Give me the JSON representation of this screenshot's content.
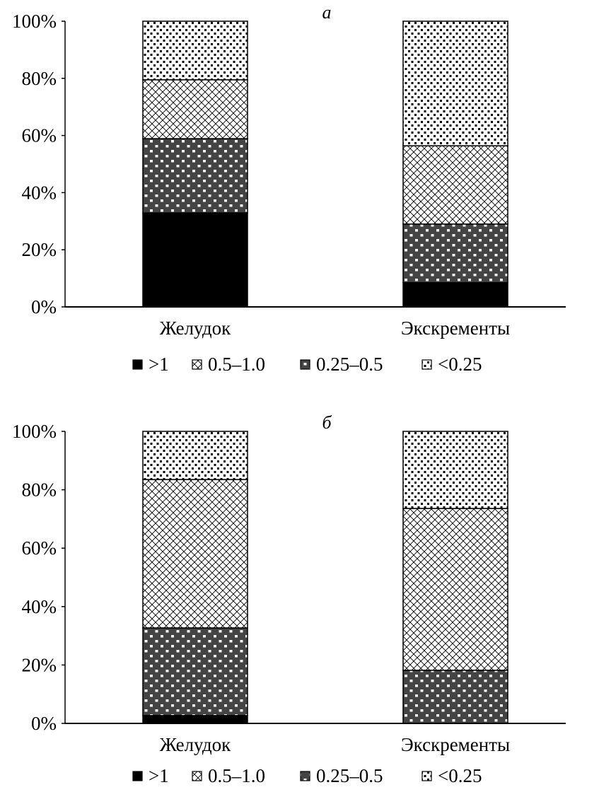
{
  "chart_data": [
    {
      "type": "bar",
      "stacked": true,
      "panel_label": "а",
      "categories": [
        "Желудок",
        "Экскременты"
      ],
      "series": [
        {
          "name": ">1",
          "values": [
            32.9,
            8.5
          ],
          "pattern": "solid-black"
        },
        {
          "name": "0.25–0.5",
          "values": [
            26.0,
            20.5
          ],
          "pattern": "dark-dotted"
        },
        {
          "name": "0.5–1.0",
          "values": [
            20.6,
            27.4
          ],
          "pattern": "crosshatch"
        },
        {
          "name": "<0.25",
          "values": [
            20.5,
            43.6
          ],
          "pattern": "light-dotted"
        }
      ],
      "legend": [
        ">1",
        "0.5–1.0",
        "0.25–0.5",
        "<0.25"
      ],
      "yticks": [
        "0%",
        "20%",
        "40%",
        "60%",
        "80%",
        "100%"
      ],
      "ylim": [
        0,
        100
      ],
      "xlabel": "",
      "ylabel": "",
      "legend_position": "bottom"
    },
    {
      "type": "bar",
      "stacked": true,
      "panel_label": "б",
      "categories": [
        "Желудок",
        "Экскременты"
      ],
      "series": [
        {
          "name": ">1",
          "values": [
            2.7,
            0
          ],
          "pattern": "solid-black"
        },
        {
          "name": "0.25–0.5",
          "values": [
            30.0,
            18.2
          ],
          "pattern": "dark-dotted"
        },
        {
          "name": "0.5–1.0",
          "values": [
            50.8,
            55.4
          ],
          "pattern": "crosshatch"
        },
        {
          "name": "<0.25",
          "values": [
            16.5,
            26.4
          ],
          "pattern": "light-dotted"
        }
      ],
      "legend": [
        ">1",
        "0.5–1.0",
        "0.25–0.5",
        "<0.25"
      ],
      "yticks": [
        "0%",
        "20%",
        "40%",
        "60%",
        "80%",
        "100%"
      ],
      "ylim": [
        0,
        100
      ],
      "xlabel": "",
      "ylabel": "",
      "legend_position": "bottom"
    }
  ]
}
